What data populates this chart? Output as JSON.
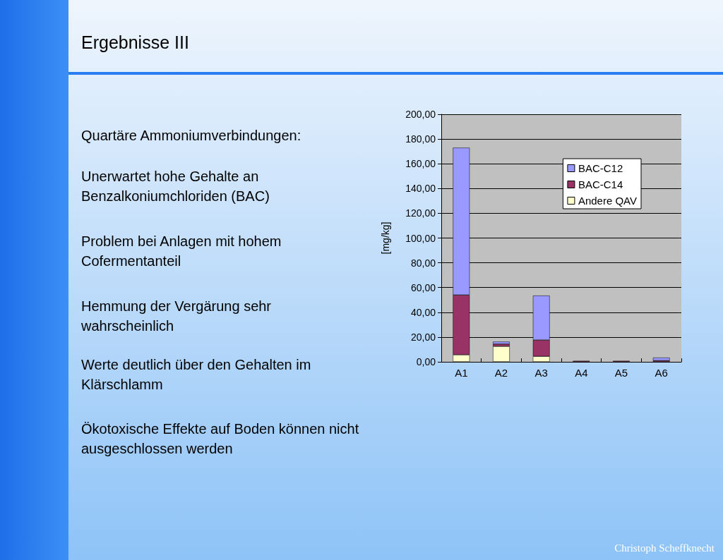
{
  "chart_data": {
    "type": "bar",
    "title": "Ergebnisse III",
    "ylabel": "[mg/kg]",
    "stacked": true,
    "categories": [
      "A1",
      "A2",
      "A3",
      "A4",
      "A5",
      "A6"
    ],
    "series": [
      {
        "name": "Andere QAV",
        "color": "#ffffcc",
        "values": [
          5.7,
          12.5,
          4.4,
          null,
          null,
          null
        ]
      },
      {
        "name": "BAC-C14",
        "color": "#993366",
        "values": [
          48.3,
          1.9,
          13.2,
          0.8,
          0.8,
          1.0
        ]
      },
      {
        "name": "BAC-C12",
        "color": "#9999ff",
        "values": [
          119,
          1.9,
          35.9,
          null,
          null,
          2.4
        ]
      }
    ],
    "ylim": [
      0,
      200
    ],
    "yticks": [
      {
        "value": 0,
        "label": "0,00"
      },
      {
        "value": 20,
        "label": "20,00"
      },
      {
        "value": 40,
        "label": "40,00"
      },
      {
        "value": 60,
        "label": "60,00"
      },
      {
        "value": 80,
        "label": "80,00"
      },
      {
        "value": 100,
        "label": "100,00"
      },
      {
        "value": 120,
        "label": "120,00"
      },
      {
        "value": 140,
        "label": "140,00"
      },
      {
        "value": 160,
        "label": "160,00"
      },
      {
        "value": 180,
        "label": "180,00"
      },
      {
        "value": 200,
        "label": "200,00"
      }
    ],
    "grid": "y",
    "legend": "top right",
    "annotations": [
      "Quartäre Ammoniumverbindungen:",
      "Unerwartet hohe Gehalte an Benzalkoniumchloriden (BAC)",
      "Problem bei Anlagen mit hohem Cofermentanteil",
      "Hemmung der Vergärung sehr wahrscheinlich",
      "Werte deutlich über den Gehalten im Klärschlamm",
      "Ökotoxische Effekte auf Boden können nicht ausgeschlossen werden",
      "Christoph Scheffknecht"
    ]
  }
}
